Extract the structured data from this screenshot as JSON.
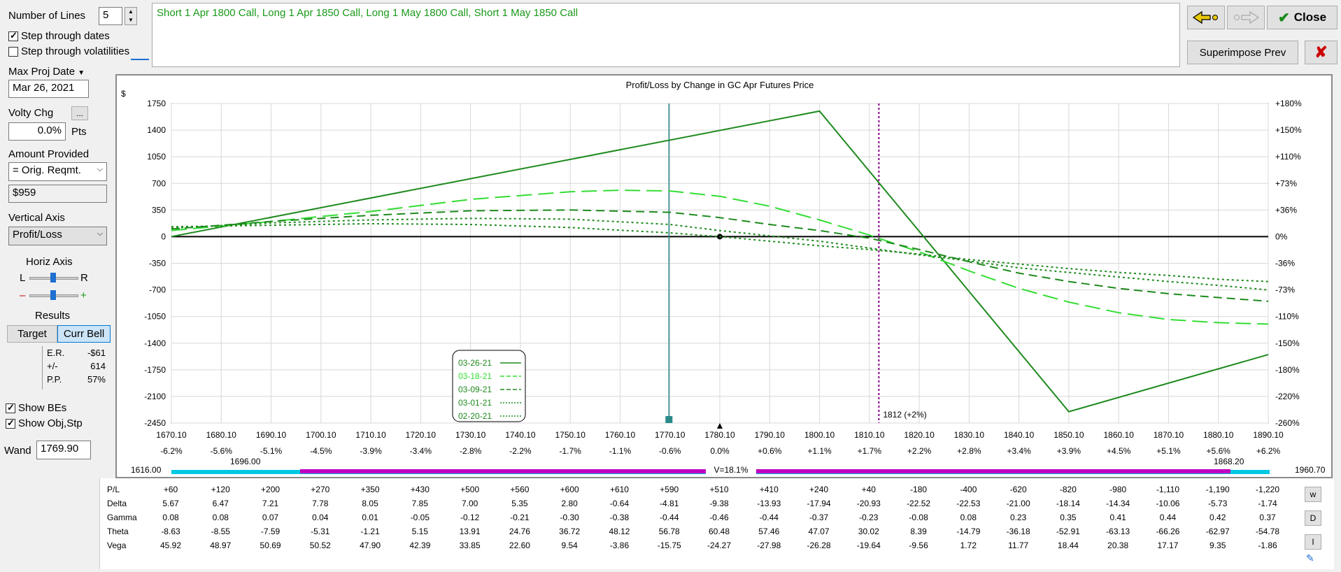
{
  "controls": {
    "num_lines_label": "Number of Lines",
    "num_lines_value": "5",
    "step_dates_label": "Step through dates",
    "step_vols_label": "Step through volatilities",
    "max_proj_date_label": "Max Proj Date",
    "max_proj_date_value": "Mar 26, 2021",
    "volty_chg_label": "Volty Chg",
    "volty_chg_btn": "...",
    "volty_chg_value": "0.0%",
    "volty_chg_units": "Pts",
    "amount_provided_label": "Amount Provided",
    "amount_provided_value": "= Orig. Reqmt.",
    "amount_value": "$959",
    "vertical_axis_label": "Vertical Axis",
    "vertical_axis_value": "Profit/Loss",
    "horiz_axis_label": "Horiz Axis",
    "horiz_l": "L",
    "horiz_r": "R",
    "horiz_minus": "–",
    "horiz_plus": "+",
    "results_label": "Results",
    "target_btn": "Target",
    "curr_bell_btn": "Curr Bell",
    "er_label": "E.R.",
    "er_value": "-$61",
    "pm_label": "+/-",
    "pm_value": "614",
    "pp_label": "P.P.",
    "pp_value": "57%",
    "show_bes_label": "Show BEs",
    "show_obj_label": "Show Obj,Stp",
    "wand_label": "Wand",
    "wand_value": "1769.90"
  },
  "description": "Short 1 Apr 1800 Call, Long 1 Apr 1850 Call, Long 1 May 1800 Call, Short 1 May 1850 Call",
  "buttons": {
    "close": "Close",
    "superimpose": "Superimpose Prev",
    "back_icon": "back-arrow-icon",
    "forward_icon": "forward-arrow-icon"
  },
  "colors": {
    "dark_green": "#1e8a1e",
    "mid_green": "#2aa82a",
    "light_green": "#33dd33",
    "wand_line": "#2a8a8a",
    "target_line": "#8b008b",
    "cyan_bar": "#00c8e0",
    "magenta_bar": "#c000c0",
    "accent_text": "#1a9a1a"
  },
  "chart_data": {
    "type": "line",
    "title": "Profit/Loss by Change in GC Apr Futures Price",
    "ylabel": "$",
    "xlim": [
      1670.1,
      1890.1
    ],
    "ylim": [
      -2450,
      1750
    ],
    "y_ticks": [
      1750,
      1400,
      1050,
      700,
      350,
      0,
      -350,
      -700,
      -1050,
      -1400,
      -1750,
      -2100,
      -2450
    ],
    "y_right_ticks": [
      "+180%",
      "+150%",
      "+110%",
      "+73%",
      "+36%",
      "0%",
      "-36%",
      "-73%",
      "-110%",
      "-150%",
      "-180%",
      "-220%",
      "-260%"
    ],
    "x_ticks": [
      "1670.10",
      "1680.10",
      "1690.10",
      "1700.10",
      "1710.10",
      "1720.10",
      "1730.10",
      "1740.10",
      "1750.10",
      "1760.10",
      "1770.10",
      "1780.10",
      "1790.10",
      "1800.10",
      "1810.10",
      "1820.10",
      "1830.10",
      "1840.10",
      "1850.10",
      "1860.10",
      "1870.10",
      "1880.10",
      "1890.10"
    ],
    "x_pct": [
      "-6.2%",
      "-5.6%",
      "-5.1%",
      "-4.5%",
      "-3.9%",
      "-3.4%",
      "-2.8%",
      "-2.2%",
      "-1.7%",
      "-1.1%",
      "-0.6%",
      "0.0%",
      "+0.6%",
      "+1.1%",
      "+1.7%",
      "+2.2%",
      "+2.8%",
      "+3.4%",
      "+3.9%",
      "+4.5%",
      "+5.1%",
      "+5.6%",
      "+6.2%"
    ],
    "wand_x": 1769.9,
    "target_x": 1812,
    "target_label": "1812 (+2%)",
    "series": [
      {
        "name": "03-26-21",
        "style": "solid",
        "color": "#1e8a1e",
        "x": [
          1670.1,
          1800.1,
          1850.1,
          1890.1
        ],
        "y": [
          0,
          1650,
          -2300,
          -1550
        ]
      },
      {
        "name": "03-18-21",
        "style": "longdash",
        "color": "#33dd33",
        "x": [
          1670.1,
          1690.1,
          1710.1,
          1730.1,
          1750.1,
          1760.1,
          1770.1,
          1780.1,
          1790.1,
          1800.1,
          1810.1,
          1820.1,
          1830.1,
          1840.1,
          1850.1,
          1860.1,
          1870.1,
          1880.1,
          1890.1
        ],
        "y": [
          80,
          200,
          330,
          490,
          590,
          610,
          600,
          530,
          400,
          220,
          20,
          -200,
          -450,
          -680,
          -860,
          -1000,
          -1090,
          -1130,
          -1150
        ]
      },
      {
        "name": "03-09-21",
        "style": "dash",
        "color": "#1e8a1e",
        "x": [
          1670.1,
          1690.1,
          1710.1,
          1730.1,
          1750.1,
          1770.1,
          1780.1,
          1790.1,
          1800.1,
          1810.1,
          1820.1,
          1830.1,
          1840.1,
          1850.1,
          1860.1,
          1870.1,
          1880.1,
          1890.1
        ],
        "y": [
          100,
          200,
          280,
          340,
          350,
          320,
          250,
          160,
          80,
          -20,
          -170,
          -330,
          -480,
          -590,
          -680,
          -750,
          -800,
          -850
        ]
      },
      {
        "name": "03-01-21",
        "style": "dot",
        "color": "#1e8a1e",
        "x": [
          1670.1,
          1690.1,
          1710.1,
          1730.1,
          1750.1,
          1770.1,
          1780.1,
          1790.1,
          1800.1,
          1810.1,
          1820.1,
          1830.1,
          1840.1,
          1850.1,
          1860.1,
          1870.1,
          1880.1,
          1890.1
        ],
        "y": [
          110,
          180,
          220,
          240,
          230,
          160,
          80,
          10,
          -60,
          -150,
          -240,
          -320,
          -410,
          -470,
          -530,
          -590,
          -640,
          -700
        ]
      },
      {
        "name": "02-20-21",
        "style": "dot",
        "color": "#1e8a1e",
        "x": [
          1670.1,
          1690.1,
          1710.1,
          1730.1,
          1750.1,
          1770.1,
          1780.1,
          1790.1,
          1800.1,
          1810.1,
          1820.1,
          1830.1,
          1840.1,
          1850.1,
          1860.1,
          1870.1,
          1880.1,
          1890.1
        ],
        "y": [
          130,
          150,
          170,
          160,
          120,
          50,
          0,
          -60,
          -120,
          -170,
          -230,
          -300,
          -360,
          -420,
          -470,
          -510,
          -560,
          -590
        ]
      }
    ],
    "range_bar": {
      "left_label": "1616.00",
      "inner_left_label": "1696.00",
      "center_label": "V=18.1%",
      "inner_right_label": "1868.20",
      "right_label": "1960.70"
    }
  },
  "greeks": {
    "labels": [
      "P/L",
      "Delta",
      "Gamma",
      "Theta",
      "Vega"
    ],
    "rows": [
      [
        "+60",
        "+120",
        "+200",
        "+270",
        "+350",
        "+430",
        "+500",
        "+560",
        "+600",
        "+610",
        "+590",
        "+510",
        "+410",
        "+240",
        "+40",
        "-180",
        "-400",
        "-620",
        "-820",
        "-980",
        "-1,110",
        "-1,190",
        "-1,220"
      ],
      [
        "5.67",
        "6.47",
        "7.21",
        "7.78",
        "8.05",
        "7.85",
        "7.00",
        "5.35",
        "2.80",
        "-0.64",
        "-4.81",
        "-9.38",
        "-13.93",
        "-17.94",
        "-20.93",
        "-22.52",
        "-22.53",
        "-21.00",
        "-18.14",
        "-14.34",
        "-10.06",
        "-5.73",
        "-1.74"
      ],
      [
        "0.08",
        "0.08",
        "0.07",
        "0.04",
        "0.01",
        "-0.05",
        "-0.12",
        "-0.21",
        "-0.30",
        "-0.38",
        "-0.44",
        "-0.46",
        "-0.44",
        "-0.37",
        "-0.23",
        "-0.08",
        "0.08",
        "0.23",
        "0.35",
        "0.41",
        "0.44",
        "0.42",
        "0.37"
      ],
      [
        "-8.63",
        "-8.55",
        "-7.59",
        "-5.31",
        "-1.21",
        "5.15",
        "13.91",
        "24.76",
        "36.72",
        "48.12",
        "56.78",
        "60.48",
        "57.46",
        "47.07",
        "30.02",
        "8.39",
        "-14.79",
        "-36.18",
        "-52.91",
        "-63.13",
        "-66.26",
        "-62.97",
        "-54.78"
      ],
      [
        "45.92",
        "48.97",
        "50.69",
        "50.52",
        "47.90",
        "42.39",
        "33.85",
        "22.60",
        "9.54",
        "-3.86",
        "-15.75",
        "-24.27",
        "-27.98",
        "-26.28",
        "-19.64",
        "-9.56",
        "1.72",
        "11.77",
        "18.44",
        "20.38",
        "17.17",
        "9.35",
        "-1.86"
      ]
    ],
    "side_buttons": [
      "w",
      "D",
      "I"
    ]
  }
}
